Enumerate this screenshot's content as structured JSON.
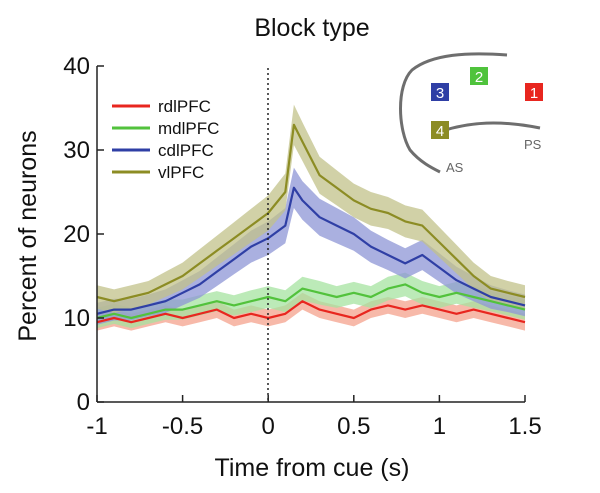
{
  "chart_data": {
    "type": "line",
    "title": "Block type",
    "xlabel": "Time from cue (s)",
    "ylabel": "Percent of neurons",
    "xlim": [
      -1,
      1.5
    ],
    "ylim": [
      0,
      40
    ],
    "xticks": [
      -1,
      -0.5,
      0,
      0.5,
      1,
      1.5
    ],
    "xtick_labels": [
      "-1",
      "-0.5",
      "0",
      "0.5",
      "1",
      "1.5"
    ],
    "yticks": [
      0,
      10,
      20,
      30,
      40
    ],
    "ytick_labels": [
      "0",
      "10",
      "20",
      "30",
      "40"
    ],
    "grid": false,
    "legend_position": "top-left",
    "reference_line": {
      "x": 0,
      "style": "dotted"
    },
    "series": [
      {
        "name": "rdlPFC",
        "color": "#e8261f",
        "band_color": "#f4a28c",
        "x": [
          -1.0,
          -0.9,
          -0.8,
          -0.7,
          -0.6,
          -0.5,
          -0.4,
          -0.3,
          -0.2,
          -0.1,
          0.0,
          0.1,
          0.2,
          0.3,
          0.4,
          0.5,
          0.6,
          0.7,
          0.8,
          0.9,
          1.0,
          1.1,
          1.2,
          1.3,
          1.4,
          1.5
        ],
        "y": [
          9.5,
          10.0,
          9.5,
          10.0,
          10.5,
          10.0,
          10.5,
          11.0,
          10.0,
          10.5,
          10.0,
          10.5,
          12.0,
          11.0,
          10.5,
          10.0,
          11.0,
          11.5,
          11.0,
          11.5,
          11.0,
          10.5,
          11.0,
          10.5,
          10.0,
          9.5
        ],
        "err": [
          1.0,
          1.0,
          1.0,
          1.0,
          1.0,
          1.0,
          1.0,
          1.0,
          1.0,
          1.0,
          1.0,
          1.0,
          1.0,
          1.0,
          1.0,
          1.0,
          1.0,
          1.0,
          1.0,
          1.0,
          1.0,
          1.0,
          1.0,
          1.0,
          1.0,
          1.0
        ]
      },
      {
        "name": "mdlPFC",
        "color": "#52c23c",
        "band_color": "#a6e3a0",
        "x": [
          -1.0,
          -0.9,
          -0.8,
          -0.7,
          -0.6,
          -0.5,
          -0.4,
          -0.3,
          -0.2,
          -0.1,
          0.0,
          0.1,
          0.2,
          0.3,
          0.4,
          0.5,
          0.6,
          0.7,
          0.8,
          0.9,
          1.0,
          1.1,
          1.2,
          1.3,
          1.4,
          1.5
        ],
        "y": [
          10.0,
          10.5,
          10.0,
          10.5,
          11.0,
          11.0,
          11.5,
          12.0,
          11.5,
          12.0,
          12.5,
          12.0,
          13.5,
          13.0,
          12.5,
          13.0,
          12.5,
          13.5,
          14.0,
          13.0,
          12.5,
          13.0,
          12.5,
          12.0,
          11.5,
          11.0
        ],
        "err": [
          1.2,
          1.2,
          1.2,
          1.2,
          1.2,
          1.2,
          1.2,
          1.2,
          1.2,
          1.3,
          1.3,
          1.3,
          1.4,
          1.4,
          1.3,
          1.3,
          1.3,
          1.4,
          1.4,
          1.4,
          1.3,
          1.3,
          1.3,
          1.2,
          1.2,
          1.2
        ]
      },
      {
        "name": "cdlPFC",
        "color": "#2f3fa5",
        "band_color": "#8e95d6",
        "x": [
          -1.0,
          -0.9,
          -0.8,
          -0.7,
          -0.6,
          -0.5,
          -0.4,
          -0.3,
          -0.2,
          -0.1,
          0.0,
          0.1,
          0.15,
          0.2,
          0.3,
          0.4,
          0.5,
          0.6,
          0.7,
          0.8,
          0.9,
          1.0,
          1.1,
          1.2,
          1.3,
          1.4,
          1.5
        ],
        "y": [
          10.5,
          11.0,
          11.0,
          11.5,
          12.0,
          13.0,
          14.0,
          15.5,
          17.0,
          18.5,
          19.5,
          21.0,
          25.5,
          24.0,
          22.0,
          21.0,
          20.0,
          18.5,
          17.5,
          16.5,
          17.5,
          16.0,
          14.5,
          13.5,
          12.5,
          12.0,
          11.5
        ],
        "err": [
          1.3,
          1.3,
          1.3,
          1.3,
          1.4,
          1.5,
          1.6,
          1.7,
          1.8,
          1.9,
          2.0,
          2.1,
          2.4,
          2.3,
          2.2,
          2.1,
          2.0,
          1.9,
          1.8,
          1.8,
          1.8,
          1.7,
          1.6,
          1.5,
          1.4,
          1.3,
          1.3
        ]
      },
      {
        "name": "vlPFC",
        "color": "#8c8c24",
        "band_color": "#c2c28a",
        "x": [
          -1.0,
          -0.9,
          -0.8,
          -0.7,
          -0.6,
          -0.5,
          -0.4,
          -0.3,
          -0.2,
          -0.1,
          0.0,
          0.1,
          0.15,
          0.2,
          0.3,
          0.4,
          0.5,
          0.6,
          0.7,
          0.8,
          0.9,
          1.0,
          1.1,
          1.2,
          1.3,
          1.4,
          1.5
        ],
        "y": [
          12.5,
          12.0,
          12.5,
          13.0,
          14.0,
          15.0,
          16.5,
          18.0,
          19.5,
          21.0,
          22.5,
          25.0,
          33.0,
          31.0,
          27.0,
          25.5,
          24.0,
          23.0,
          22.5,
          21.5,
          21.0,
          19.0,
          17.0,
          15.0,
          13.5,
          13.0,
          12.5
        ],
        "err": [
          1.4,
          1.4,
          1.4,
          1.4,
          1.5,
          1.6,
          1.7,
          1.8,
          1.9,
          2.0,
          2.1,
          2.2,
          2.4,
          2.3,
          2.2,
          2.1,
          2.0,
          2.0,
          1.9,
          1.9,
          1.9,
          1.8,
          1.7,
          1.6,
          1.5,
          1.4,
          1.4
        ]
      }
    ]
  },
  "inset": {
    "labels": {
      "as": "AS",
      "ps": "PS"
    },
    "regions": [
      {
        "label": "1",
        "color": "#e8261f"
      },
      {
        "label": "2",
        "color": "#4fc33c"
      },
      {
        "label": "3",
        "color": "#2f3fa5"
      },
      {
        "label": "4",
        "color": "#8c8c24"
      }
    ]
  }
}
